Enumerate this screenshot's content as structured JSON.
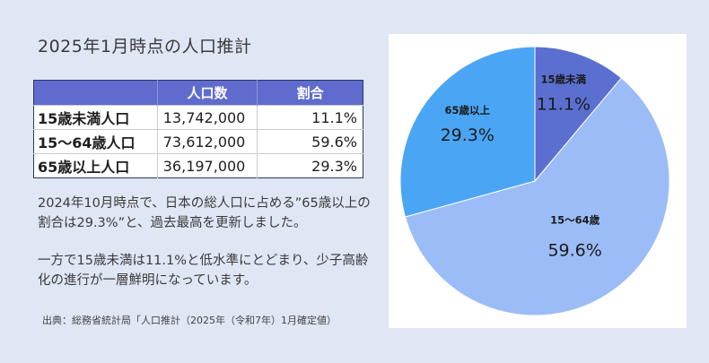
{
  "title": "2025年1月時点の人口推計",
  "table": {
    "headers": [
      "",
      "人口数",
      "割合"
    ],
    "rows": [
      {
        "label": "15歳未満人口",
        "population": "13,742,000",
        "ratio": "11.1%"
      },
      {
        "label": "15～64歳人口",
        "population": "73,612,000",
        "ratio": "59.6%"
      },
      {
        "label": "65歳以上人口",
        "population": "36,197,000",
        "ratio": "29.3%"
      }
    ]
  },
  "paragraph1": "2024年10月時点で、日本の総人口に占める”65歳以上の割合は29.3%”と、過去最高を更新しました。",
  "paragraph2": "一方で15歳未満は11.1%と低水準にとどまり、少子高齢化の進行が一層鮮明になっています。",
  "source": "出典：総務省統計局「人口推計（2025年（令和7年）1月確定値）",
  "chart_data": {
    "type": "pie",
    "slices": [
      {
        "name": "15歳未満",
        "value": 11.1,
        "label": "11.1%",
        "color": "#5b6fd0"
      },
      {
        "name": "15～64歳",
        "value": 59.6,
        "label": "59.6%",
        "color": "#9bbcf7"
      },
      {
        "name": "65歳以上",
        "value": 29.3,
        "label": "29.3%",
        "color": "#4aa6f5"
      }
    ]
  }
}
